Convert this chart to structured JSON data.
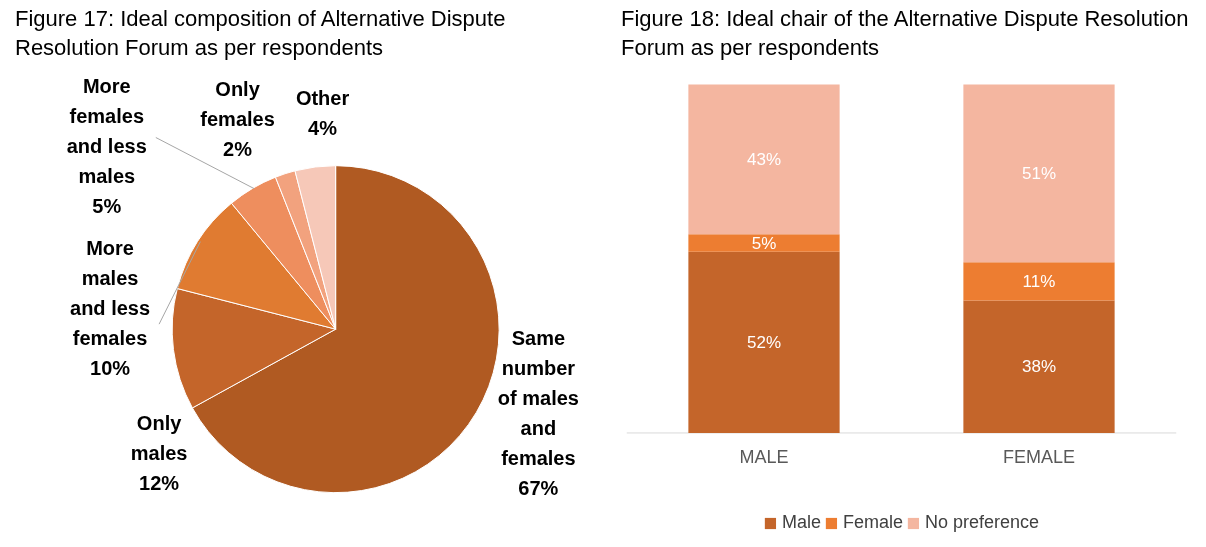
{
  "chart_data": [
    {
      "type": "pie",
      "title": "Figure 17: Ideal composition of Alternative Dispute Resolution Forum as per respondents",
      "categories": [
        "Same number of males and females",
        "Only males",
        "More males and less females",
        "More females and less males",
        "Only females",
        "Other"
      ],
      "values": [
        67,
        12,
        10,
        5,
        2,
        4
      ],
      "value_labels": [
        "67%",
        "12%",
        "10%",
        "5%",
        "2%",
        "4%"
      ],
      "colors": [
        "#b05a22",
        "#c4652a",
        "#e07b31",
        "#ee8e5e",
        "#f2a27e",
        "#f6c8b8"
      ]
    },
    {
      "type": "bar",
      "title": "Figure 18: Ideal chair of the Alternative Dispute Resolution Forum as per respondents",
      "categories": [
        "MALE",
        "FEMALE"
      ],
      "stacked": true,
      "data_labels": true,
      "legend": "bottom",
      "series": [
        {
          "name": "Male",
          "color": "#c4652a",
          "values": [
            52,
            38
          ],
          "value_labels": [
            "52%",
            "38%"
          ]
        },
        {
          "name": "Female",
          "color": "#ed7d31",
          "values": [
            5,
            11
          ],
          "value_labels": [
            "5%",
            "11%"
          ]
        },
        {
          "name": "No preference",
          "color": "#f4b6a0",
          "values": [
            43,
            51
          ],
          "value_labels": [
            "43%",
            "51%"
          ]
        }
      ]
    }
  ]
}
